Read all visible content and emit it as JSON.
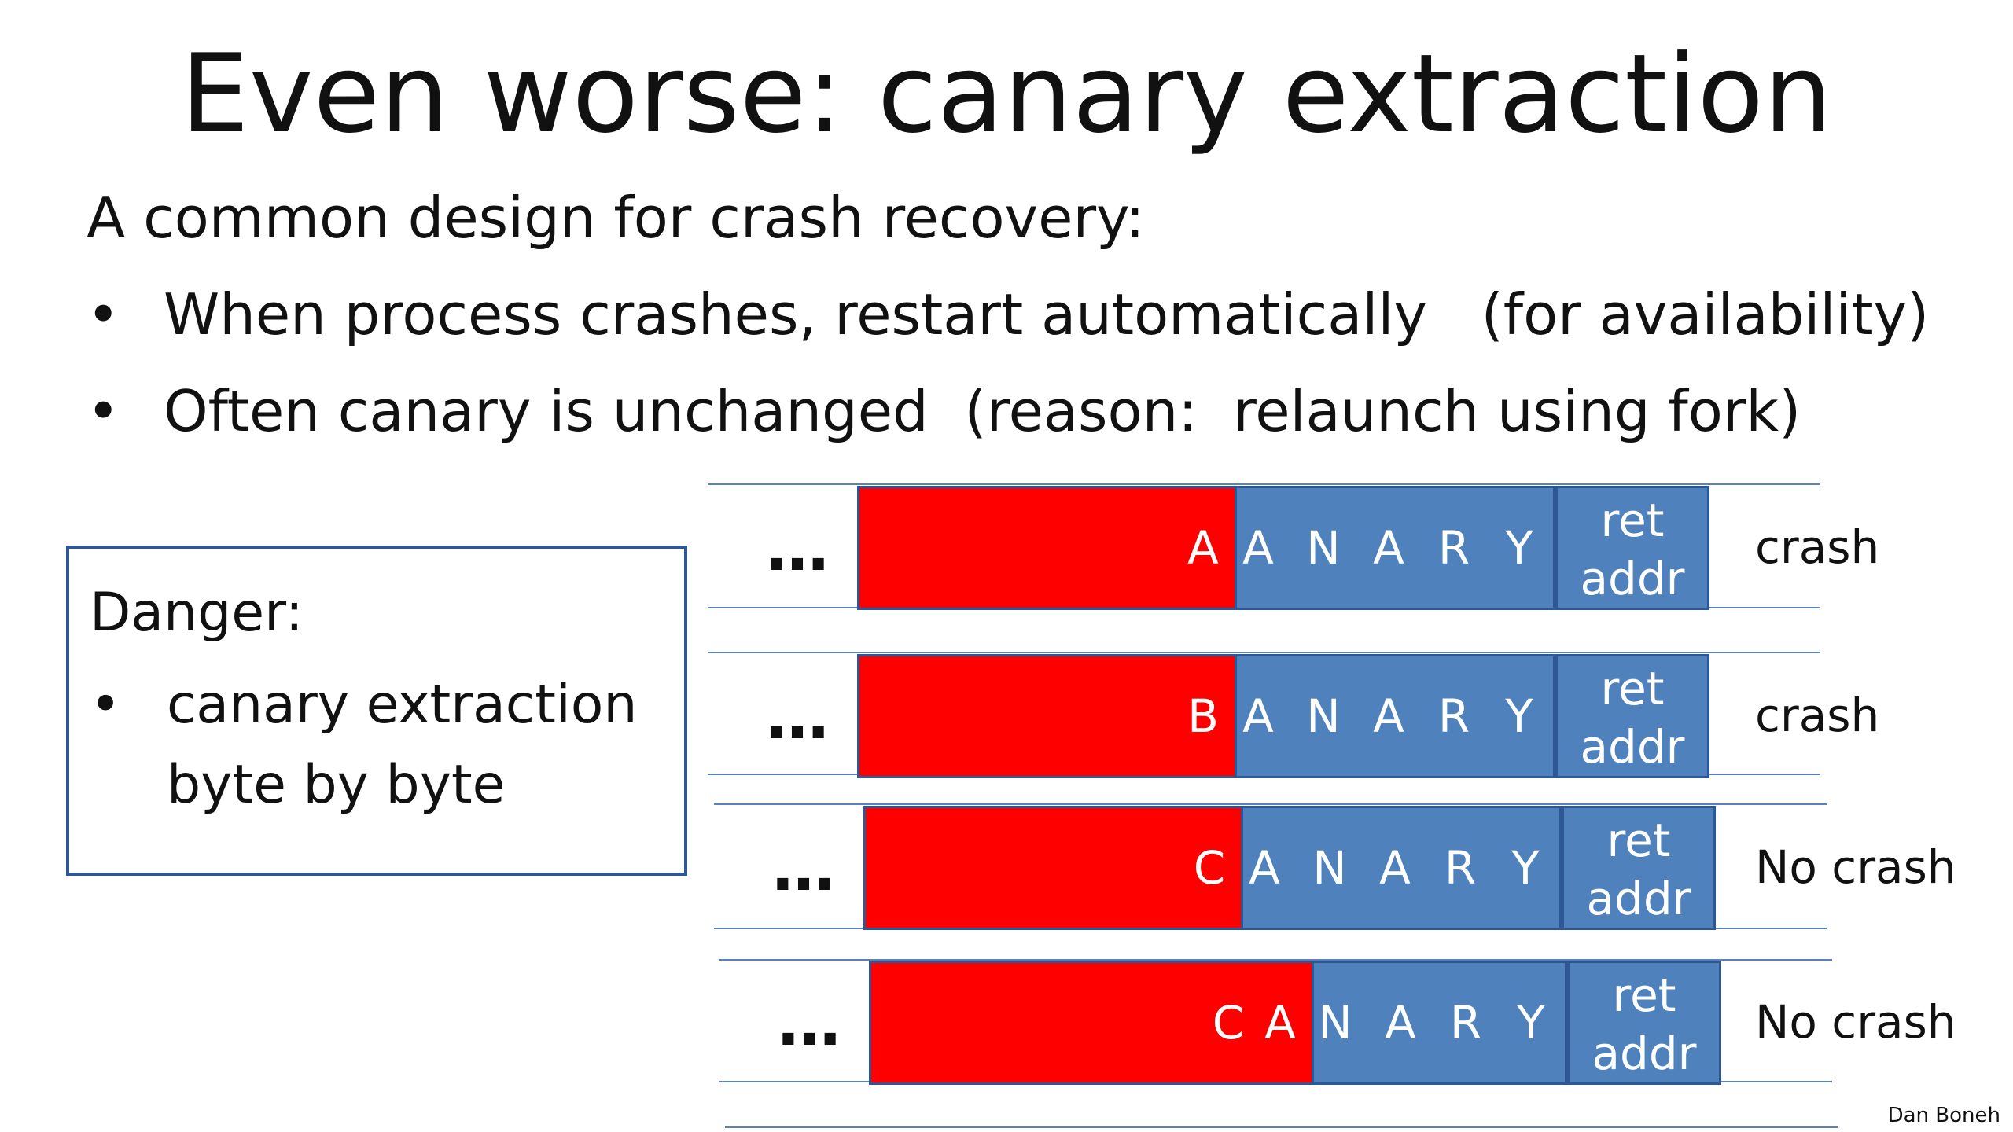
{
  "slide": {
    "title": "Even worse:  canary extraction",
    "intro": "A common design for crash recovery:",
    "bullets": [
      "When process crashes, restart automatically   (for availability)",
      "Often canary is unchanged  (reason:  relaunch using fork)"
    ],
    "bullet_symbol": "•",
    "danger": {
      "title": "Danger:",
      "item": "canary extraction byte by byte"
    },
    "ellipsis": "…",
    "ret_addr_label": "ret addr",
    "rows": [
      {
        "letters": [
          "A",
          "A",
          "N",
          "A",
          "R",
          "Y"
        ],
        "overwritten": 1,
        "status": "crash"
      },
      {
        "letters": [
          "B",
          "A",
          "N",
          "A",
          "R",
          "Y"
        ],
        "overwritten": 1,
        "status": "crash"
      },
      {
        "letters": [
          "C",
          "A",
          "N",
          "A",
          "R",
          "Y"
        ],
        "overwritten": 1,
        "status": "No crash"
      },
      {
        "letters": [
          "C",
          "A",
          "N",
          "A",
          "R",
          "Y"
        ],
        "overwritten": 2,
        "status": "No crash"
      }
    ],
    "credit": "Dan Boneh"
  },
  "colors": {
    "overflow_red": "#ff0000",
    "canary_blue": "#4f81bd",
    "border_blue": "#2e5895",
    "line_blue": "#5b80c0"
  }
}
